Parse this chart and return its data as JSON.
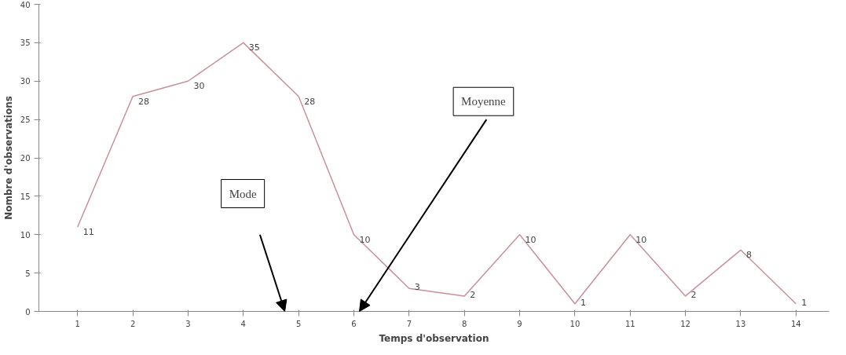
{
  "chart_data": {
    "type": "line",
    "xlabel": "Temps d'observation",
    "ylabel": "Nombre d'observations",
    "categories": [
      "1",
      "2",
      "3",
      "4",
      "5",
      "6",
      "7",
      "8",
      "9",
      "10",
      "11",
      "12",
      "13",
      "14"
    ],
    "series": [
      {
        "color": "#c8909a",
        "values": [
          11,
          28,
          30,
          35,
          28,
          10,
          3,
          2,
          10,
          1,
          10,
          2,
          8,
          1
        ]
      }
    ],
    "ylim": [
      0,
      40
    ],
    "yticks": [
      0,
      5,
      10,
      15,
      20,
      25,
      30,
      35,
      40
    ],
    "grid": false,
    "marker": "none",
    "line_style": "solid",
    "data_labels": true,
    "annotations": [
      "Mode",
      "Moyenne"
    ]
  }
}
